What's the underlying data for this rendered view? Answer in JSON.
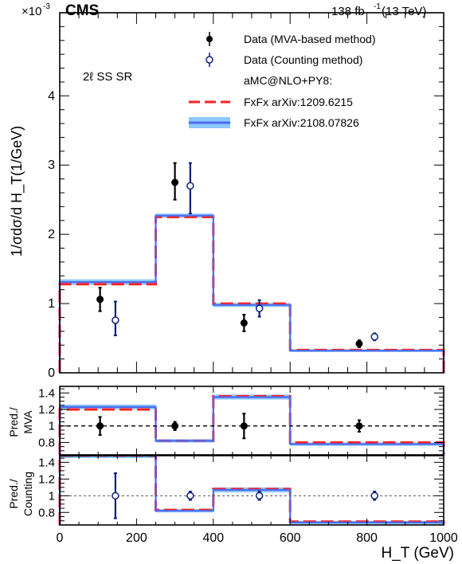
{
  "header": {
    "experiment": "CMS",
    "lumi_value": "138 fb",
    "lumi_exp": "-1",
    "lumi_energy": "(13 TeV)",
    "exponent_base": "×10",
    "exponent_power": "-3"
  },
  "colors": {
    "data_mva": "#000000",
    "data_counting": "#0a1e78",
    "fxfx_1209": "#ff2020",
    "fxfx_2108_line": "#4a6cf0",
    "fxfx_2108_band": "#8ec8ff"
  },
  "chart_data": [
    {
      "type": "line",
      "panel": "main",
      "region_label": "2ℓ SS SR",
      "ylabel": "1/σdσ/d H_T(1/GeV)",
      "xlim": [
        0,
        1000
      ],
      "ylim": [
        0,
        5.2
      ],
      "y_scale_factor": "×10^-3",
      "yticks": [
        0,
        1,
        2,
        3,
        4
      ],
      "bin_edges": [
        0,
        250,
        400,
        600,
        1000
      ],
      "legend": {
        "position": "top-right",
        "entries": [
          {
            "label": "Data (MVA-based method)",
            "marker": "filled-circle"
          },
          {
            "label": "Data (Counting method)",
            "marker": "open-circle"
          },
          {
            "label": "aMC@NLO+PY8:",
            "marker": "none"
          },
          {
            "label": "FxFx arXiv:1209.6215",
            "marker": "dashed-red"
          },
          {
            "label": "FxFx arXiv:2108.07826",
            "marker": "band-blue"
          }
        ]
      },
      "series": [
        {
          "name": "Data (MVA-based method)",
          "x": [
            105,
            300,
            480,
            780
          ],
          "y": [
            1.06,
            2.75,
            0.72,
            0.42
          ],
          "err_lo": [
            0.17,
            0.25,
            0.12,
            0.05
          ],
          "err_hi": [
            0.17,
            0.28,
            0.12,
            0.05
          ]
        },
        {
          "name": "Data (Counting method)",
          "x": [
            145,
            340,
            520,
            820
          ],
          "y": [
            0.76,
            2.7,
            0.93,
            0.52
          ],
          "err_lo": [
            0.22,
            0.4,
            0.12,
            0.05
          ],
          "err_hi": [
            0.27,
            0.33,
            0.12,
            0.05
          ]
        },
        {
          "name": "FxFx arXiv:1209.6215",
          "step_values": [
            1.28,
            2.25,
            1.0,
            0.33
          ]
        },
        {
          "name": "FxFx arXiv:2108.07826",
          "step_values": [
            1.31,
            2.27,
            0.98,
            0.32
          ],
          "band_halfwidth": [
            0.04,
            0.03,
            0.03,
            0.02
          ]
        }
      ]
    },
    {
      "type": "line",
      "panel": "ratio-mva",
      "ylabel_line1": "Pred./",
      "ylabel_line2": "MVA",
      "xlim": [
        0,
        1000
      ],
      "ylim": [
        0.65,
        1.48
      ],
      "yticks": [
        0.8,
        1,
        1.2,
        1.4
      ],
      "reference_line": 1,
      "series": [
        {
          "name": "Data (MVA-based method)",
          "x": [
            105,
            300,
            480,
            780
          ],
          "y": [
            1.0,
            1.0,
            1.0,
            1.0
          ],
          "err_lo": [
            0.11,
            0.05,
            0.15,
            0.07
          ],
          "err_hi": [
            0.11,
            0.05,
            0.15,
            0.07
          ]
        },
        {
          "name": "FxFx arXiv:1209.6215",
          "step_values": [
            1.2,
            0.82,
            1.36,
            0.8
          ]
        },
        {
          "name": "FxFx arXiv:2108.07826",
          "step_values": [
            1.23,
            0.82,
            1.35,
            0.78
          ],
          "band_halfwidth": [
            0.03,
            0.02,
            0.03,
            0.02
          ]
        }
      ]
    },
    {
      "type": "line",
      "panel": "ratio-counting",
      "ylabel_line1": "Pred./",
      "ylabel_line2": "Counting",
      "xlabel": "H_T (GeV)",
      "xlim": [
        0,
        1000
      ],
      "ylim": [
        0.65,
        1.48
      ],
      "yticks": [
        0.8,
        1,
        1.2,
        1.4
      ],
      "xticks": [
        0,
        200,
        400,
        600,
        800,
        1000
      ],
      "reference_line": 1,
      "series": [
        {
          "name": "Data (Counting method)",
          "x": [
            145,
            340,
            520,
            820
          ],
          "y": [
            1.0,
            1.0,
            1.0,
            1.0
          ],
          "err_lo": [
            0.27,
            0.05,
            0.05,
            0.05
          ],
          "err_hi": [
            0.27,
            0.05,
            0.05,
            0.05
          ]
        },
        {
          "name": "FxFx arXiv:1209.6215",
          "step_values": [
            1.48,
            0.83,
            1.08,
            0.69
          ]
        },
        {
          "name": "FxFx arXiv:2108.07826",
          "step_values": [
            1.48,
            0.82,
            1.07,
            0.68
          ],
          "band_halfwidth": [
            0.02,
            0.02,
            0.03,
            0.02
          ]
        }
      ]
    }
  ]
}
